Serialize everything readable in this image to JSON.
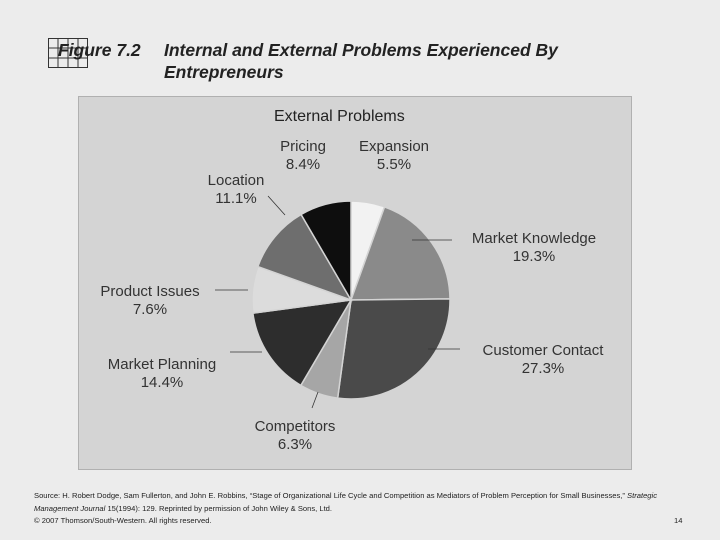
{
  "figure": {
    "number": "Figure 7.2",
    "title_line1": "Internal and External Problems Experienced By",
    "title_line2": "Entrepreneurs"
  },
  "chart_data": {
    "type": "pie",
    "title": "External Problems",
    "start_angle_deg": 0,
    "slices": [
      {
        "label": "Expansion",
        "value": 5.5,
        "value_label": "5.5%",
        "color": "#f2f2f2"
      },
      {
        "label": "Market Knowledge",
        "value": 19.3,
        "value_label": "19.3%",
        "color": "#8a8a8a"
      },
      {
        "label": "Customer Contact",
        "value": 27.3,
        "value_label": "27.3%",
        "color": "#4a4a4a"
      },
      {
        "label": "Competitors",
        "value": 6.3,
        "value_label": "6.3%",
        "color": "#a6a6a6"
      },
      {
        "label": "Market Planning",
        "value": 14.4,
        "value_label": "14.4%",
        "color": "#2d2d2d"
      },
      {
        "label": "Product Issues",
        "value": 7.6,
        "value_label": "7.6%",
        "color": "#dcdcdc"
      },
      {
        "label": "Location",
        "value": 11.1,
        "value_label": "11.1%",
        "color": "#6e6e6e"
      },
      {
        "label": "Pricing",
        "value": 8.4,
        "value_label": "8.4%",
        "color": "#0e0e0e"
      }
    ]
  },
  "source": {
    "prefix": "Source: H. Robert Dodge, Sam Fullerton, and John E. Robbins, “Stage of Organizational Life Cycle and Competition as Mediators of Problem Perception for Small Businesses,” ",
    "journal": "Strategic Management Journal",
    "suffix": " 15(1994): 129. Reprinted by permission of John Wiley & Sons, Ltd."
  },
  "copyright": "© 2007 Thomson/South-Western. All rights reserved.",
  "page_number": "14"
}
